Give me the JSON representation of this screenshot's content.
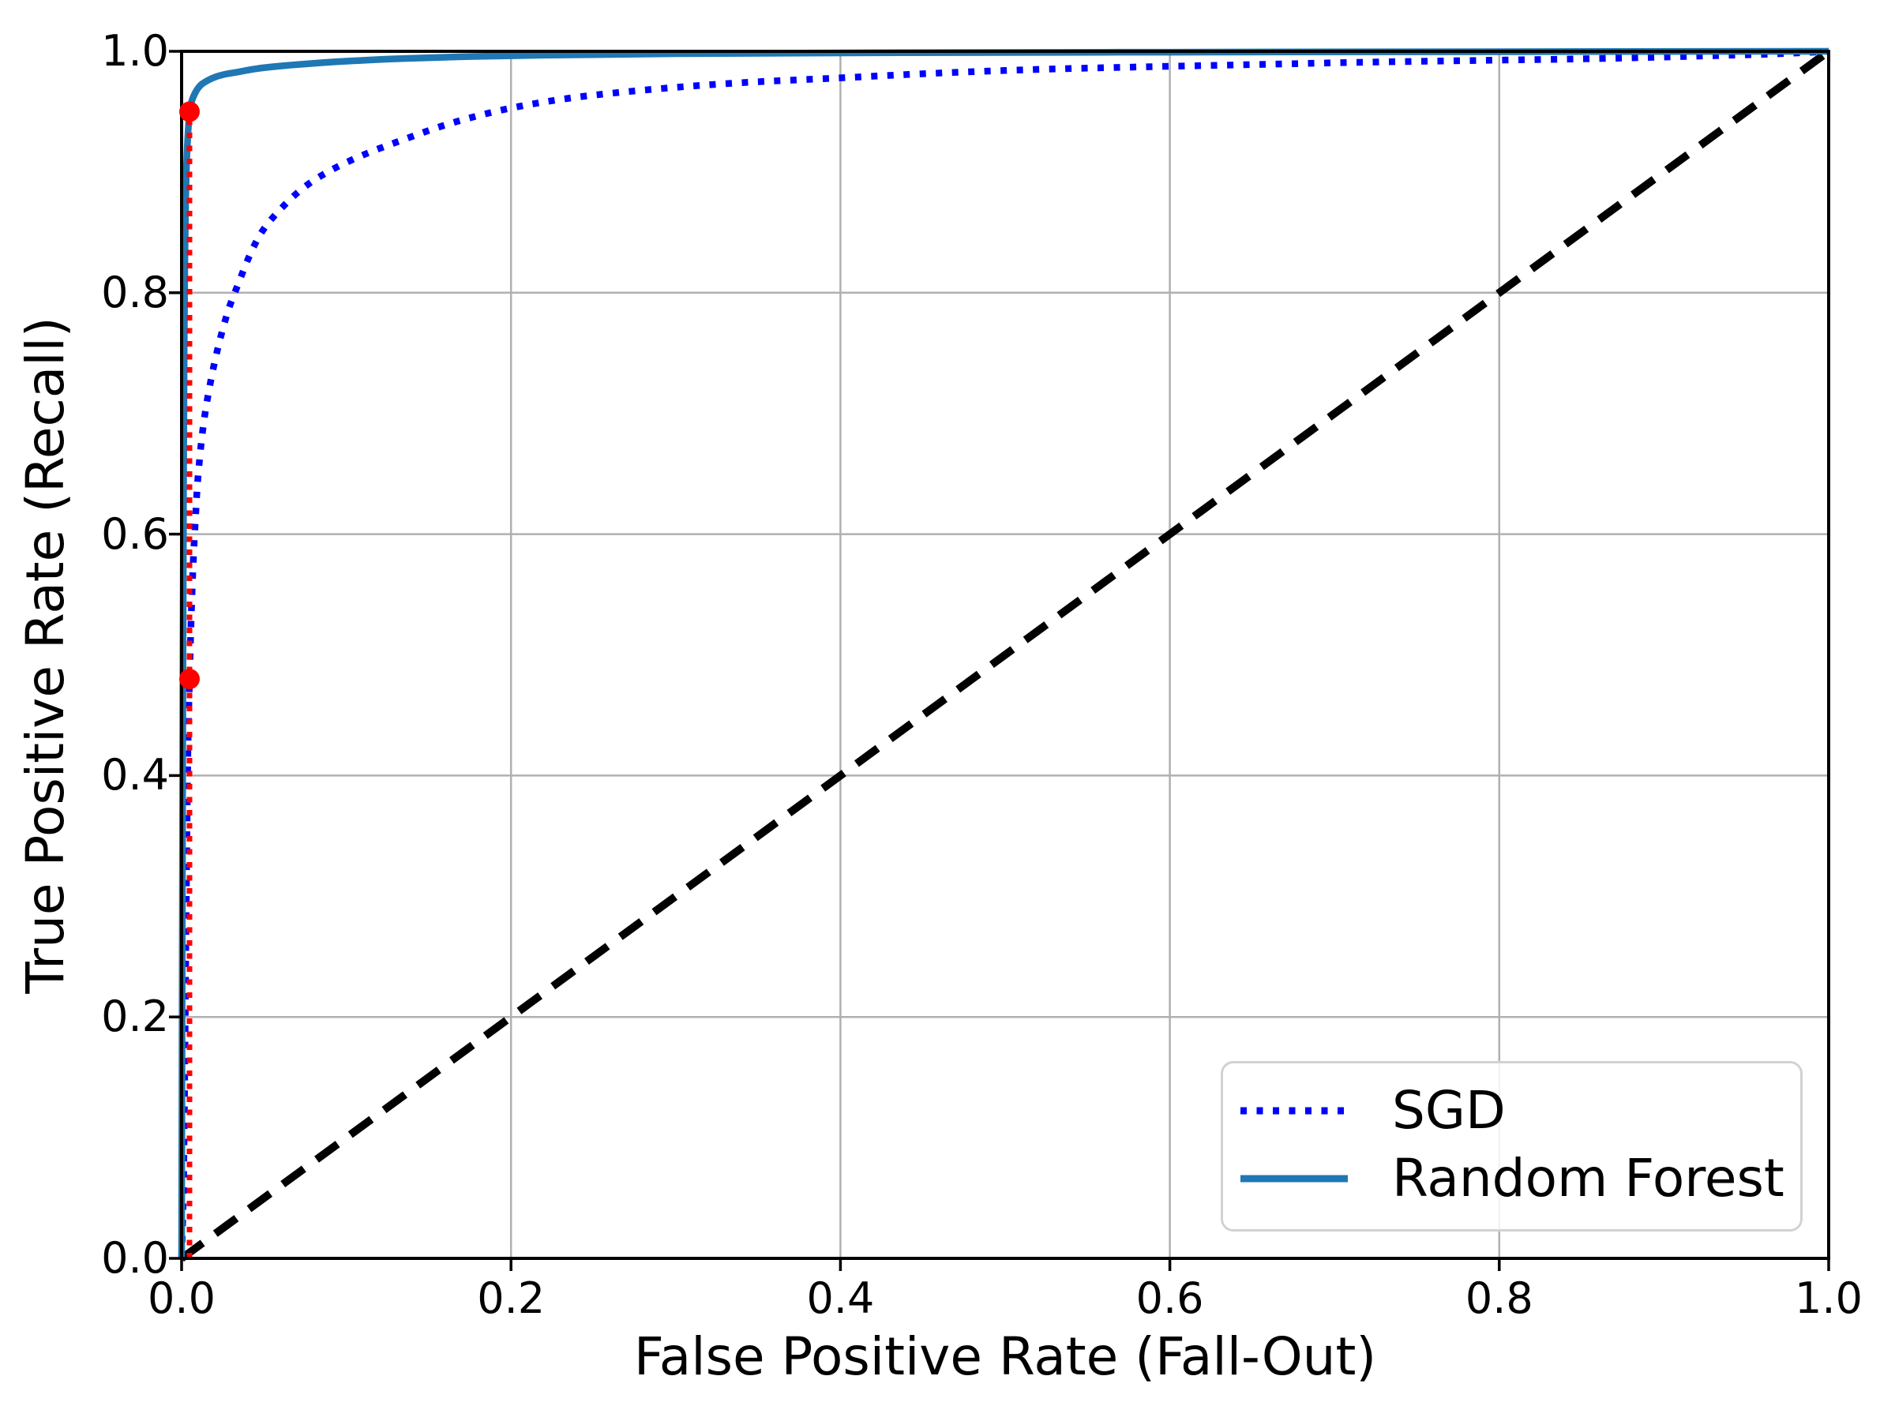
{
  "chart_data": {
    "type": "line",
    "title": "",
    "xlabel": "False Positive Rate (Fall-Out)",
    "ylabel": "True Positive Rate (Recall)",
    "xlim": [
      0,
      1
    ],
    "ylim": [
      0,
      1
    ],
    "x_ticks": [
      "0.0",
      "0.2",
      "0.4",
      "0.6",
      "0.8",
      "1.0"
    ],
    "y_ticks": [
      "0.0",
      "0.2",
      "0.4",
      "0.6",
      "0.8",
      "1.0"
    ],
    "grid": true,
    "legend_position": "lower right",
    "series": [
      {
        "name": "SGD",
        "color": "#0000ff",
        "line_style": "dotted",
        "show_in_legend": true,
        "points": [
          [
            0,
            0
          ],
          [
            0.001,
            0.05
          ],
          [
            0.0015,
            0.1
          ],
          [
            0.002,
            0.17
          ],
          [
            0.0025,
            0.25
          ],
          [
            0.003,
            0.32
          ],
          [
            0.0035,
            0.385
          ],
          [
            0.004,
            0.435
          ],
          [
            0.0048,
            0.48
          ],
          [
            0.0058,
            0.53
          ],
          [
            0.007,
            0.575
          ],
          [
            0.0085,
            0.615
          ],
          [
            0.01,
            0.648
          ],
          [
            0.013,
            0.688
          ],
          [
            0.017,
            0.722
          ],
          [
            0.022,
            0.754
          ],
          [
            0.028,
            0.784
          ],
          [
            0.034,
            0.806
          ],
          [
            0.042,
            0.833
          ],
          [
            0.05,
            0.853
          ],
          [
            0.062,
            0.872
          ],
          [
            0.075,
            0.888
          ],
          [
            0.09,
            0.901
          ],
          [
            0.11,
            0.914
          ],
          [
            0.135,
            0.927
          ],
          [
            0.165,
            0.941
          ],
          [
            0.2,
            0.953
          ],
          [
            0.24,
            0.962
          ],
          [
            0.29,
            0.969
          ],
          [
            0.34,
            0.974
          ],
          [
            0.4,
            0.978
          ],
          [
            0.46,
            0.982
          ],
          [
            0.52,
            0.985
          ],
          [
            0.58,
            0.987
          ],
          [
            0.65,
            0.989
          ],
          [
            0.72,
            0.991
          ],
          [
            0.79,
            0.9925
          ],
          [
            0.86,
            0.994
          ],
          [
            0.92,
            0.996
          ],
          [
            0.97,
            0.998
          ],
          [
            1,
            1
          ]
        ]
      },
      {
        "name": "Random Forest",
        "color": "#1f77b4",
        "line_style": "solid",
        "show_in_legend": true,
        "points": [
          [
            0,
            0
          ],
          [
            0.0004,
            0.25
          ],
          [
            0.0008,
            0.48
          ],
          [
            0.0012,
            0.65
          ],
          [
            0.0016,
            0.76
          ],
          [
            0.002,
            0.83
          ],
          [
            0.0025,
            0.878
          ],
          [
            0.003,
            0.906
          ],
          [
            0.0038,
            0.93
          ],
          [
            0.0048,
            0.95
          ],
          [
            0.006,
            0.958
          ],
          [
            0.0075,
            0.9635
          ],
          [
            0.0095,
            0.9685
          ],
          [
            0.012,
            0.9725
          ],
          [
            0.016,
            0.976
          ],
          [
            0.021,
            0.979
          ],
          [
            0.027,
            0.9812
          ],
          [
            0.034,
            0.9828
          ],
          [
            0.045,
            0.9855
          ],
          [
            0.06,
            0.9878
          ],
          [
            0.08,
            0.99
          ],
          [
            0.1,
            0.9918
          ],
          [
            0.13,
            0.9938
          ],
          [
            0.17,
            0.9955
          ],
          [
            0.22,
            0.9968
          ],
          [
            0.3,
            0.998
          ],
          [
            0.42,
            0.9988
          ],
          [
            0.6,
            0.9993
          ],
          [
            0.8,
            0.9997
          ],
          [
            1,
            1
          ]
        ]
      },
      {
        "name": "chance-diagonal",
        "color": "#000000",
        "line_style": "dashed",
        "show_in_legend": false,
        "points": [
          [
            0,
            0
          ],
          [
            1,
            1
          ]
        ]
      }
    ],
    "annotations": {
      "threshold_line": {
        "x": 0.0048,
        "y_start": 0,
        "y_end": 0.95,
        "color": "#ff0000",
        "line_style": "dotted"
      },
      "markers": [
        {
          "x": 0.0048,
          "y": 0.48,
          "color": "#ff0000",
          "shape": "circle"
        },
        {
          "x": 0.0048,
          "y": 0.95,
          "color": "#ff0000",
          "shape": "circle"
        }
      ]
    }
  },
  "legend": {
    "items": [
      {
        "label": "SGD",
        "color": "#0000ff",
        "line_style": "dotted"
      },
      {
        "label": "Random Forest",
        "color": "#1f77b4",
        "line_style": "solid"
      }
    ]
  },
  "colors": {
    "background": "#ffffff",
    "grid": "#b0b0b0",
    "axis": "#000000",
    "sgd": "#0000ff",
    "random_forest": "#1f77b4",
    "threshold_red": "#ff0000"
  }
}
